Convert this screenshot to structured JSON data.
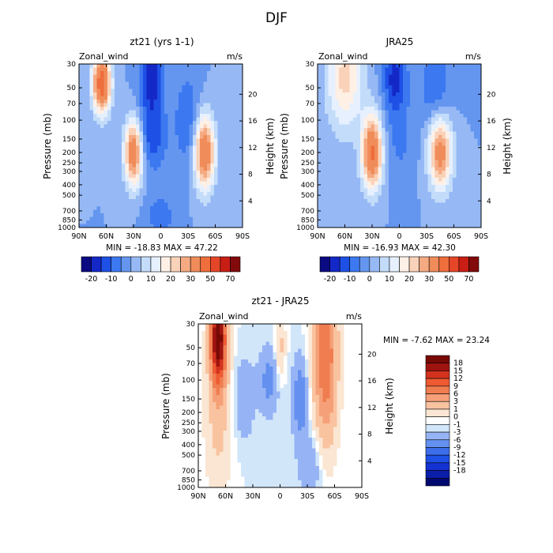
{
  "chart_data": {
    "type": "heatmap",
    "title": "DJF",
    "panels": [
      {
        "id": "model",
        "title": "zt21 (yrs 1-1)",
        "variable": "Zonal_wind",
        "units": "m/s",
        "ylabel": "Pressure (mb)",
        "ylabel_right": "Height (km)",
        "x_ticks": [
          "90N",
          "60N",
          "30N",
          "0",
          "30S",
          "60S",
          "90S"
        ],
        "y_ticks": [
          "30",
          "50",
          "70",
          "100",
          "150",
          "200",
          "250",
          "300",
          "400",
          "500",
          "700",
          "850",
          "1000"
        ],
        "height_ticks": [
          "4",
          "8",
          "12",
          "16",
          "20"
        ],
        "stats_text": "MIN = -18.83 MAX = 47.22",
        "min": -18.83,
        "max": 47.22,
        "jets": [
          {
            "lat": 30,
            "pressure": 200,
            "value": 40,
            "wlat": 7,
            "wlog": 0.5
          },
          {
            "lat": -48,
            "pressure": 200,
            "value": 40,
            "wlat": 8,
            "wlog": 0.55
          },
          {
            "lat": 65,
            "pressure": 45,
            "value": 47,
            "wlat": 7,
            "wlog": 0.45
          },
          {
            "lat": 10,
            "pressure": 40,
            "value": -19,
            "wlat": 9,
            "wlog": 0.6
          },
          {
            "lat": 10,
            "pressure": 150,
            "value": -12,
            "wlat": 12,
            "wlog": 0.5
          },
          {
            "lat": -30,
            "pressure": 100,
            "value": -10,
            "wlat": 10,
            "wlog": 0.7
          },
          {
            "lat": 0,
            "pressure": 800,
            "value": -8,
            "wlat": 12,
            "wlog": 0.35
          }
        ]
      },
      {
        "id": "obs",
        "title": "JRA25",
        "variable": "Zonal_wind",
        "units": "m/s",
        "ylabel": "Pressure (mb)",
        "ylabel_right": "Height (km)",
        "x_ticks": [
          "90N",
          "60N",
          "30N",
          "0",
          "30S",
          "60S",
          "90S"
        ],
        "y_ticks": [
          "30",
          "50",
          "70",
          "100",
          "150",
          "200",
          "250",
          "300",
          "400",
          "500",
          "700",
          "850",
          "1000"
        ],
        "height_ticks": [
          "4",
          "8",
          "12",
          "16",
          "20"
        ],
        "stats_text": "MIN = -16.93 MAX = 42.30",
        "min": -16.93,
        "max": 42.3,
        "jets": [
          {
            "lat": 30,
            "pressure": 200,
            "value": 42,
            "wlat": 8,
            "wlog": 0.55
          },
          {
            "lat": -45,
            "pressure": 200,
            "value": 35,
            "wlat": 9,
            "wlog": 0.55
          },
          {
            "lat": 60,
            "pressure": 40,
            "value": 22,
            "wlat": 14,
            "wlog": 0.8
          },
          {
            "lat": 5,
            "pressure": 40,
            "value": -17,
            "wlat": 9,
            "wlog": 0.5
          },
          {
            "lat": 0,
            "pressure": 150,
            "value": -6,
            "wlat": 12,
            "wlog": 0.7
          },
          {
            "lat": -40,
            "pressure": 50,
            "value": -10,
            "wlat": 12,
            "wlog": 0.6
          }
        ]
      },
      {
        "id": "diff",
        "title": "zt21 - JRA25",
        "variable": "Zonal_wind",
        "units": "m/s",
        "ylabel": "Pressure (mb)",
        "ylabel_right": "Height (km)",
        "x_ticks": [
          "90N",
          "60N",
          "30N",
          "0",
          "30S",
          "60S",
          "90S"
        ],
        "y_ticks": [
          "30",
          "50",
          "70",
          "100",
          "150",
          "200",
          "250",
          "300",
          "400",
          "500",
          "700",
          "850",
          "1000"
        ],
        "height_ticks": [
          "4",
          "8",
          "12",
          "16",
          "20"
        ],
        "stats_text": "MIN = -7.62 MAX = 23.24",
        "min": -7.62,
        "max": 23.24,
        "jets": [
          {
            "lat": 68,
            "pressure": 40,
            "value": 23,
            "wlat": 6,
            "wlog": 0.7
          },
          {
            "lat": 68,
            "pressure": 200,
            "value": 4,
            "wlat": 10,
            "wlog": 1.2
          },
          {
            "lat": -50,
            "pressure": 60,
            "value": 12,
            "wlat": 9,
            "wlog": 1.3
          },
          {
            "lat": 0,
            "pressure": 50,
            "value": 4,
            "wlat": 4,
            "wlog": 0.5
          },
          {
            "lat": 12,
            "pressure": 100,
            "value": -4,
            "wlat": 8,
            "wlog": 0.5
          },
          {
            "lat": -22,
            "pressure": 150,
            "value": -5,
            "wlat": 6,
            "wlog": 0.6
          },
          {
            "lat": 40,
            "pressure": 150,
            "value": -3,
            "wlat": 8,
            "wlog": 0.6
          },
          {
            "lat": -35,
            "pressure": 600,
            "value": -3,
            "wlat": 10,
            "wlog": 0.5
          }
        ]
      }
    ],
    "colorbars": [
      {
        "id": "model",
        "orientation": "horizontal",
        "labels": [
          "-20",
          "-10",
          "0",
          "10",
          "20",
          "30",
          "50",
          "70"
        ],
        "label_boxes": [
          1,
          3,
          5,
          7,
          9,
          11,
          13,
          15
        ],
        "levels": [
          -25,
          -20,
          -15,
          -10,
          -5,
          0,
          5,
          10,
          15,
          20,
          25,
          30,
          40,
          50,
          60,
          70,
          80
        ],
        "colors": [
          "#0a0a82",
          "#1428c8",
          "#1e50e6",
          "#3c78f0",
          "#6496f0",
          "#96b9f5",
          "#c3dcfa",
          "#e6f0ff",
          "#fff0e6",
          "#fad2b9",
          "#f5aa82",
          "#f08c5a",
          "#ee6e3c",
          "#e64628",
          "#c81e14",
          "#820a0a"
        ]
      },
      {
        "id": "obs",
        "orientation": "horizontal",
        "labels": [
          "-20",
          "-10",
          "0",
          "10",
          "20",
          "30",
          "50",
          "70"
        ],
        "label_boxes": [
          1,
          3,
          5,
          7,
          9,
          11,
          13,
          15
        ],
        "levels": [
          -25,
          -20,
          -15,
          -10,
          -5,
          0,
          5,
          10,
          15,
          20,
          25,
          30,
          40,
          50,
          60,
          70,
          80
        ],
        "colors": [
          "#0a0a82",
          "#1428c8",
          "#1e50e6",
          "#3c78f0",
          "#6496f0",
          "#96b9f5",
          "#c3dcfa",
          "#e6f0ff",
          "#fff0e6",
          "#fad2b9",
          "#f5aa82",
          "#f08c5a",
          "#ee6e3c",
          "#e64628",
          "#c81e14",
          "#820a0a"
        ]
      },
      {
        "id": "diff",
        "orientation": "vertical",
        "labels": [
          "18",
          "15",
          "12",
          "9",
          "6",
          "3",
          "1",
          "0",
          "-1",
          "-3",
          "-6",
          "-9",
          "-12",
          "-15",
          "-18"
        ],
        "levels": [
          -21,
          -18,
          -15,
          -12,
          -9,
          -6,
          -3,
          -1,
          0,
          1,
          3,
          6,
          9,
          12,
          15,
          18,
          21
        ],
        "colors": [
          "#000a6e",
          "#0a1eaa",
          "#1432d2",
          "#1e50e6",
          "#3c6eeb",
          "#6491f0",
          "#96b4f5",
          "#d2e6fa",
          "#ffffff",
          "#fae6d2",
          "#fac3a0",
          "#f5a078",
          "#f07d50",
          "#ee5a32",
          "#d2321e",
          "#a01410",
          "#780a05"
        ]
      }
    ]
  }
}
